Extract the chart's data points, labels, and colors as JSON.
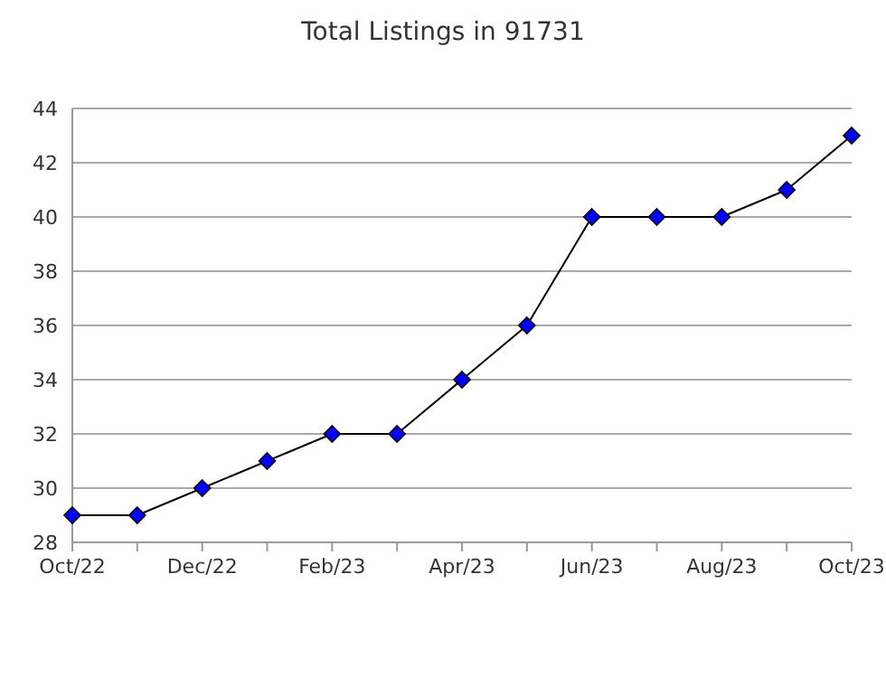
{
  "chart_data": {
    "type": "line",
    "title": "Total Listings in 91731",
    "categories": [
      "Oct/22",
      null,
      "Dec/22",
      null,
      "Feb/23",
      null,
      "Apr/23",
      null,
      "Jun/23",
      null,
      "Aug/23",
      null,
      "Oct/23"
    ],
    "series": [
      {
        "color": "#0000ff",
        "values": [
          29,
          29,
          30,
          31,
          32,
          32,
          34,
          36,
          40,
          40,
          40,
          41,
          43
        ]
      }
    ],
    "ylim": [
      28,
      44
    ],
    "yticks": [
      28,
      30,
      32,
      34,
      36,
      38,
      40,
      42,
      44
    ],
    "grid": "y",
    "marker": "diamond",
    "line_style": "solid"
  }
}
